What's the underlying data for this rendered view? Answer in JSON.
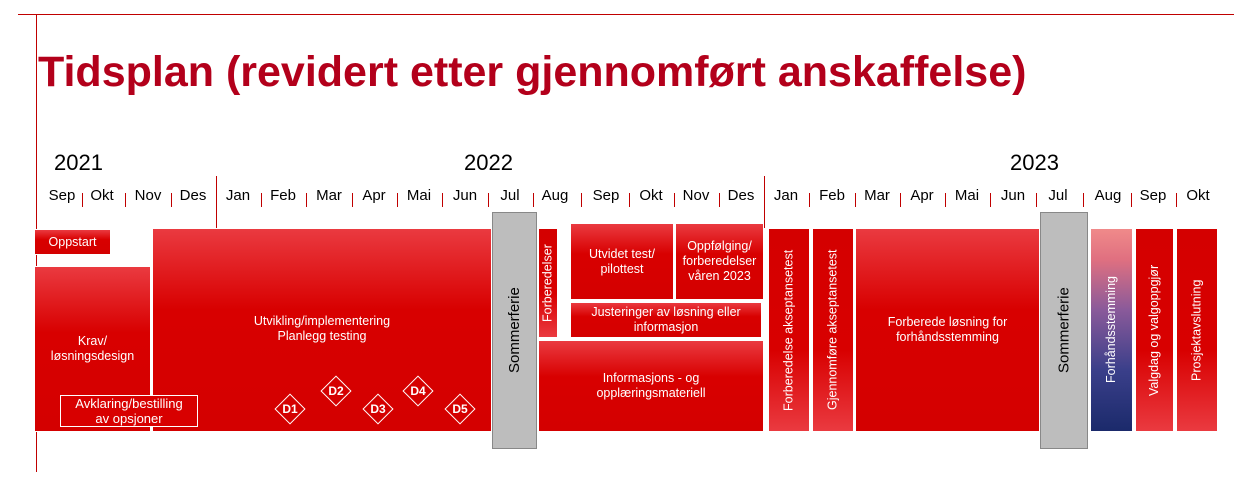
{
  "header": {
    "title": "Tidsplan (revidert etter gjennomført anskaffelse)"
  },
  "years": [
    "2021",
    "2022",
    "2023"
  ],
  "months": [
    "Sep",
    "Okt",
    "Nov",
    "Des",
    "Jan",
    "Feb",
    "Mar",
    "Apr",
    "Mai",
    "Jun",
    "Jul",
    "Aug",
    "Sep",
    "Okt",
    "Nov",
    "Des",
    "Jan",
    "Feb",
    "Mar",
    "Apr",
    "Mai",
    "Jun",
    "Jul",
    "Aug",
    "Sep",
    "Okt"
  ],
  "tasks": [
    {
      "lines": [
        "Oppstart"
      ]
    },
    {
      "lines": [
        "Krav/",
        "løsningsdesign"
      ]
    },
    {
      "lines": [
        "Utvikling/implementering",
        "Planlegg testing"
      ]
    },
    {
      "lines": [
        "Avklaring/bestilling",
        "av opsjoner"
      ]
    },
    {
      "lines": [
        "Sommerferie"
      ]
    },
    {
      "lines": [
        "Forberedelser"
      ]
    },
    {
      "lines": [
        "Utvidet test/",
        "pilottest"
      ]
    },
    {
      "lines": [
        "Oppfølging/",
        "forberedelser",
        "våren 2023"
      ]
    },
    {
      "lines": [
        "Justeringer av løsning eller",
        "informasjon"
      ]
    },
    {
      "lines": [
        "Informasjons - og",
        "opplæringsmateriell"
      ]
    },
    {
      "lines": [
        "Forberedelse akseptansetest"
      ]
    },
    {
      "lines": [
        "Gjennomføre akseptansetest"
      ]
    },
    {
      "lines": [
        "Forberede løsning for",
        "forhåndsstemming"
      ]
    },
    {
      "lines": [
        "Sommerferie"
      ]
    },
    {
      "lines": [
        "Forhåndsstemming"
      ]
    },
    {
      "lines": [
        "Valgdag og valgoppgjør"
      ]
    },
    {
      "lines": [
        "Prosjektavslutning"
      ]
    }
  ],
  "milestones": [
    "D1",
    "D2",
    "D3",
    "D4",
    "D5"
  ]
}
